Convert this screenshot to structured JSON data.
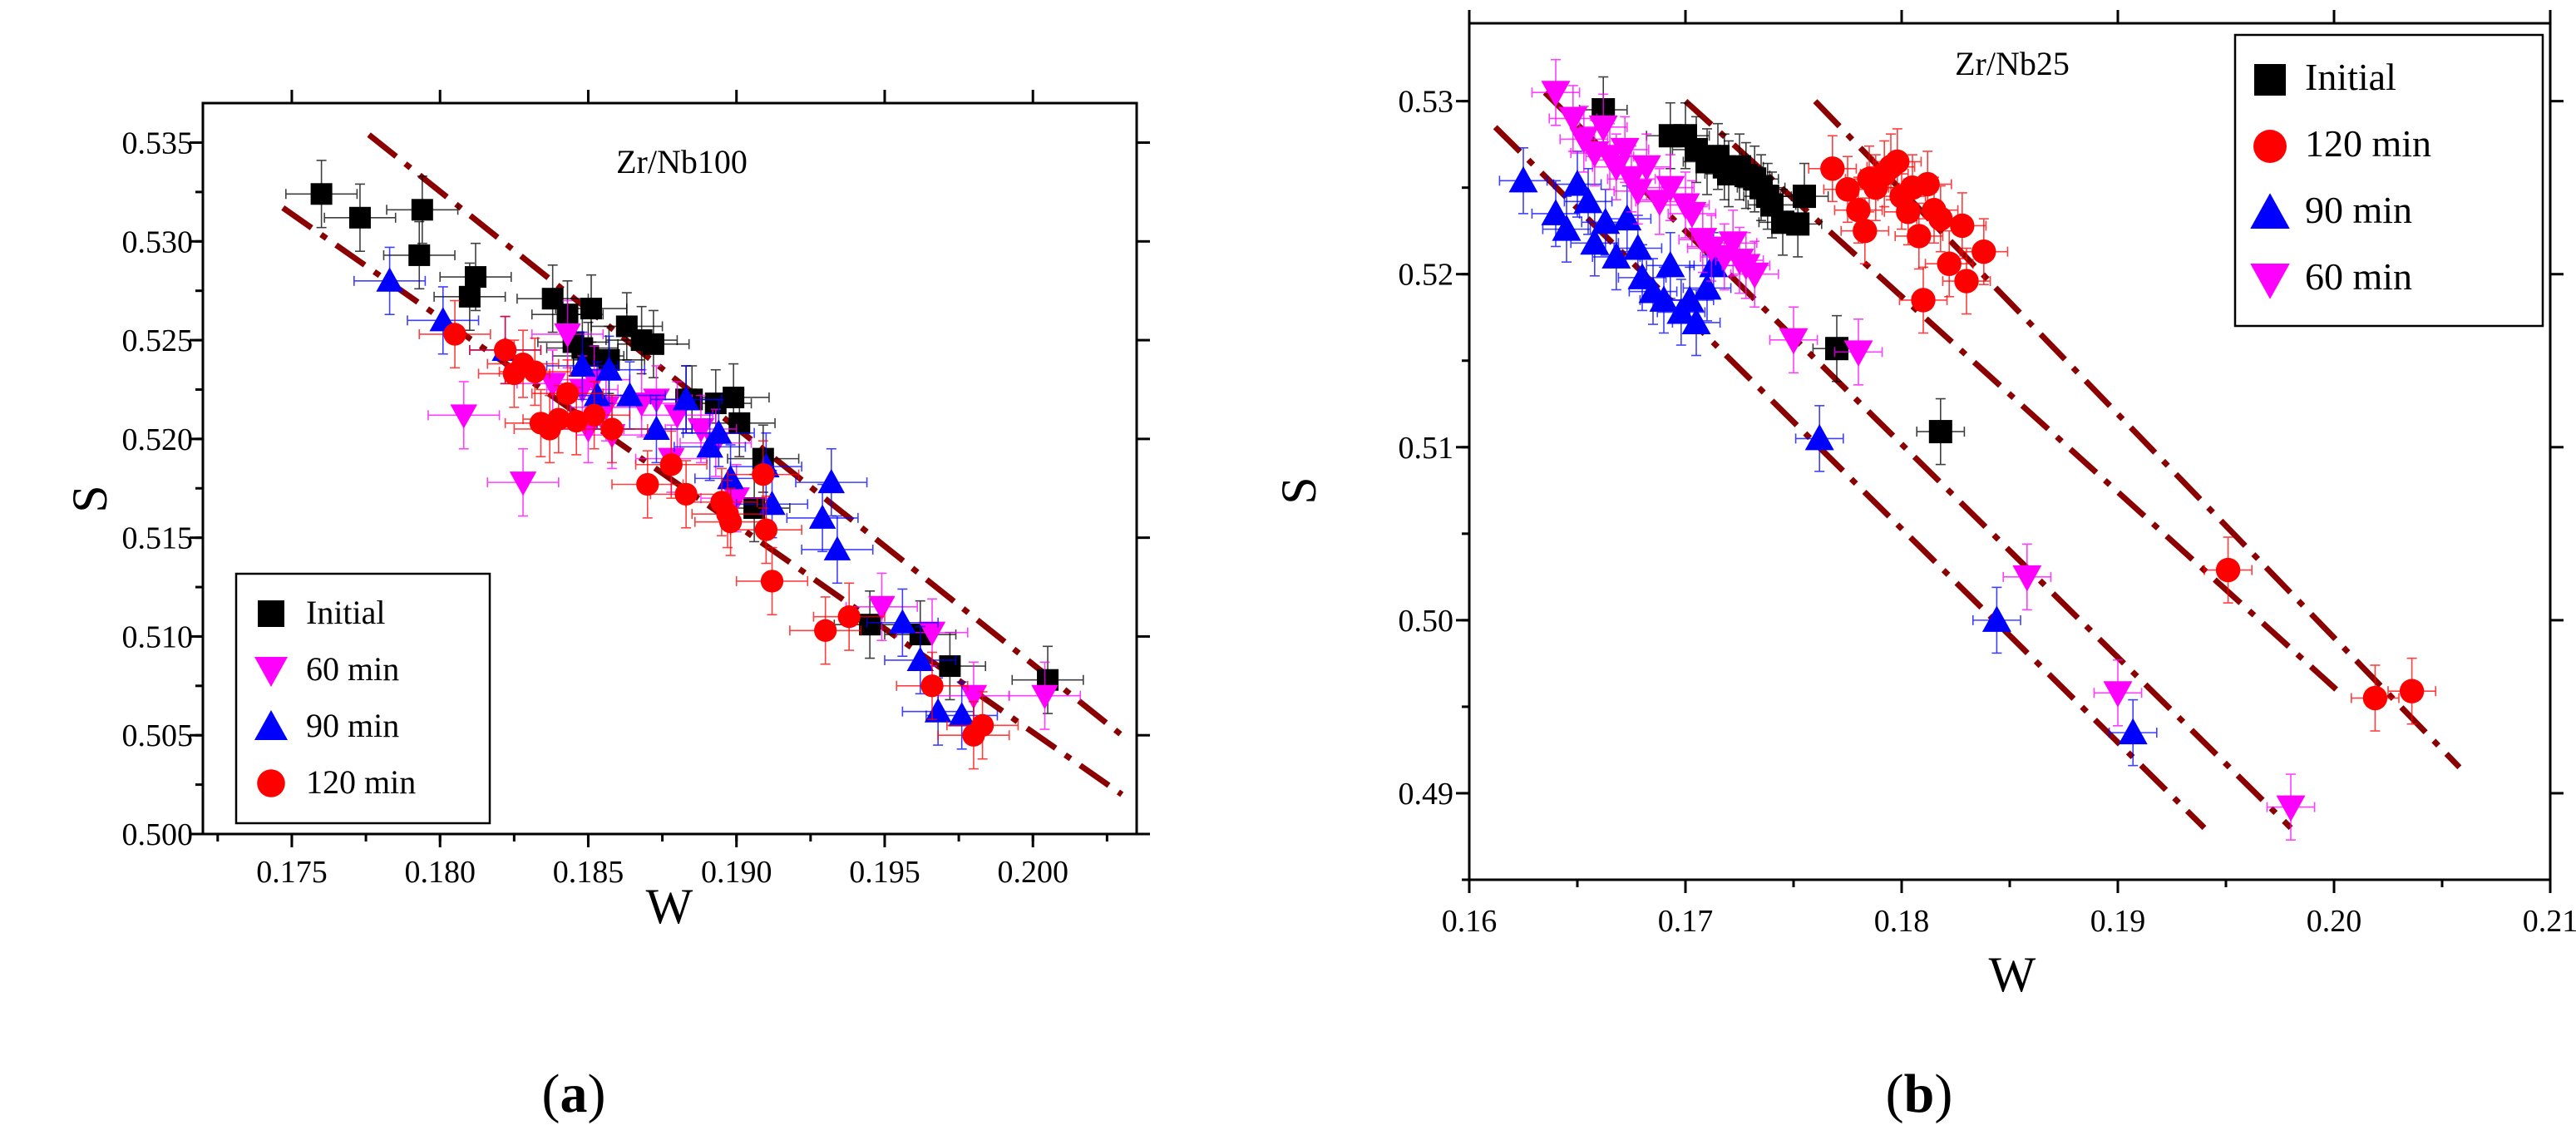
{
  "chart_data": [
    {
      "type": "scatter",
      "title": "Zr/Nb100",
      "caption": "a",
      "xlabel": "W",
      "ylabel": "S",
      "xlim": [
        0.172,
        0.2035
      ],
      "ylim": [
        0.5,
        0.537
      ],
      "x_ticks": [
        "0.175",
        "0.180",
        "0.185",
        "0.190",
        "0.195",
        "0.200"
      ],
      "y_ticks": [
        "0.500",
        "0.505",
        "0.510",
        "0.515",
        "0.520",
        "0.525",
        "0.530",
        "0.535"
      ],
      "legend_position": "bottom-left",
      "series": [
        {
          "name": "Initial",
          "marker": "square",
          "color": "#000000",
          "points": [
            [
              0.176,
              0.5324
            ],
            [
              0.1773,
              0.5312
            ],
            [
              0.1793,
              0.5293
            ],
            [
              0.1794,
              0.5316
            ],
            [
              0.181,
              0.5272
            ],
            [
              0.1812,
              0.5282
            ],
            [
              0.1838,
              0.5271
            ],
            [
              0.1843,
              0.5263
            ],
            [
              0.1845,
              0.5249
            ],
            [
              0.1848,
              0.5246
            ],
            [
              0.185,
              0.5242
            ],
            [
              0.1851,
              0.5266
            ],
            [
              0.1857,
              0.524
            ],
            [
              0.1863,
              0.5257
            ],
            [
              0.1868,
              0.525
            ],
            [
              0.1872,
              0.5248
            ],
            [
              0.1883,
              0.522
            ],
            [
              0.1885,
              0.522
            ],
            [
              0.1893,
              0.5218
            ],
            [
              0.1899,
              0.5221
            ],
            [
              0.1901,
              0.5208
            ],
            [
              0.1906,
              0.5165
            ],
            [
              0.1909,
              0.519
            ],
            [
              0.1945,
              0.5106
            ],
            [
              0.1962,
              0.5101
            ],
            [
              0.1972,
              0.5085
            ],
            [
              0.2005,
              0.5078
            ]
          ]
        },
        {
          "name": "60 min",
          "marker": "triangle-down",
          "color": "#ff00ff",
          "points": [
            [
              0.1808,
              0.5212
            ],
            [
              0.1828,
              0.5178
            ],
            [
              0.1838,
              0.5228
            ],
            [
              0.1843,
              0.5253
            ],
            [
              0.1848,
              0.5225
            ],
            [
              0.185,
              0.5205
            ],
            [
              0.1852,
              0.523
            ],
            [
              0.1856,
              0.5216
            ],
            [
              0.1858,
              0.5202
            ],
            [
              0.1868,
              0.5218
            ],
            [
              0.1873,
              0.522
            ],
            [
              0.1878,
              0.519
            ],
            [
              0.188,
              0.5212
            ],
            [
              0.1888,
              0.5205
            ],
            [
              0.1893,
              0.5198
            ],
            [
              0.19,
              0.517
            ],
            [
              0.1949,
              0.5115
            ],
            [
              0.1966,
              0.5102
            ],
            [
              0.198,
              0.507
            ],
            [
              0.2004,
              0.507
            ]
          ]
        },
        {
          "name": "90 min",
          "marker": "triangle-up",
          "color": "#0000ff",
          "points": [
            [
              0.1783,
              0.528
            ],
            [
              0.1801,
              0.526
            ],
            [
              0.1822,
              0.5245
            ],
            [
              0.1848,
              0.5237
            ],
            [
              0.1853,
              0.5222
            ],
            [
              0.1857,
              0.5235
            ],
            [
              0.1864,
              0.5222
            ],
            [
              0.1873,
              0.5205
            ],
            [
              0.1883,
              0.522
            ],
            [
              0.1891,
              0.5196
            ],
            [
              0.1894,
              0.5203
            ],
            [
              0.1898,
              0.518
            ],
            [
              0.191,
              0.5186
            ],
            [
              0.1912,
              0.5167
            ],
            [
              0.1929,
              0.516
            ],
            [
              0.1932,
              0.5178
            ],
            [
              0.1934,
              0.5144
            ],
            [
              0.1956,
              0.5107
            ],
            [
              0.1962,
              0.5088
            ],
            [
              0.1968,
              0.5062
            ],
            [
              0.1976,
              0.506
            ]
          ]
        },
        {
          "name": "120 min",
          "marker": "circle",
          "color": "#ff0000",
          "points": [
            [
              0.1805,
              0.5253
            ],
            [
              0.1822,
              0.5245
            ],
            [
              0.1825,
              0.5233
            ],
            [
              0.1828,
              0.5238
            ],
            [
              0.1832,
              0.5234
            ],
            [
              0.1834,
              0.5208
            ],
            [
              0.1837,
              0.5205
            ],
            [
              0.184,
              0.521
            ],
            [
              0.1843,
              0.5223
            ],
            [
              0.1846,
              0.5209
            ],
            [
              0.1852,
              0.5212
            ],
            [
              0.1858,
              0.5205
            ],
            [
              0.187,
              0.5177
            ],
            [
              0.1878,
              0.5187
            ],
            [
              0.1883,
              0.5172
            ],
            [
              0.1895,
              0.5168
            ],
            [
              0.1897,
              0.5162
            ],
            [
              0.1898,
              0.5158
            ],
            [
              0.1909,
              0.5182
            ],
            [
              0.191,
              0.5154
            ],
            [
              0.1912,
              0.5128
            ],
            [
              0.193,
              0.5103
            ],
            [
              0.1938,
              0.511
            ],
            [
              0.1966,
              0.5075
            ],
            [
              0.198,
              0.505
            ],
            [
              0.1983,
              0.5055
            ]
          ]
        }
      ],
      "fit_lines": [
        [
          [
            0.1776,
            0.5354
          ],
          [
            0.203,
            0.505
          ]
        ],
        [
          [
            0.1747,
            0.5317
          ],
          [
            0.203,
            0.502
          ]
        ]
      ]
    },
    {
      "type": "scatter",
      "title": "Zr/Nb25",
      "caption": "b",
      "xlabel": "W",
      "ylabel": "S",
      "xlim": [
        0.16,
        0.21
      ],
      "ylim": [
        0.485,
        0.5345
      ],
      "x_ticks": [
        "0.16",
        "0.17",
        "0.18",
        "0.19",
        "0.20",
        "0.21"
      ],
      "y_ticks": [
        "0.49",
        "0.50",
        "0.51",
        "0.52",
        "0.53"
      ],
      "legend_position": "top-right",
      "series": [
        {
          "name": "Initial",
          "marker": "square",
          "color": "#000000",
          "points": [
            [
              0.1662,
              0.5295
            ],
            [
              0.1693,
              0.528
            ],
            [
              0.17,
              0.528
            ],
            [
              0.1705,
              0.5272
            ],
            [
              0.171,
              0.5265
            ],
            [
              0.1715,
              0.5268
            ],
            [
              0.1718,
              0.5262
            ],
            [
              0.172,
              0.5258
            ],
            [
              0.1725,
              0.5262
            ],
            [
              0.1728,
              0.5257
            ],
            [
              0.1732,
              0.5255
            ],
            [
              0.1735,
              0.525
            ],
            [
              0.1738,
              0.5245
            ],
            [
              0.174,
              0.524
            ],
            [
              0.1745,
              0.523
            ],
            [
              0.1752,
              0.5229
            ],
            [
              0.1755,
              0.5245
            ],
            [
              0.177,
              0.5157
            ],
            [
              0.1818,
              0.5109
            ]
          ]
        },
        {
          "name": "120 min",
          "marker": "circle",
          "color": "#ff0000",
          "points": [
            [
              0.1768,
              0.5261
            ],
            [
              0.1775,
              0.5249
            ],
            [
              0.178,
              0.5237
            ],
            [
              0.1783,
              0.5225
            ],
            [
              0.1785,
              0.5255
            ],
            [
              0.1788,
              0.525
            ],
            [
              0.1792,
              0.5258
            ],
            [
              0.1795,
              0.5262
            ],
            [
              0.1798,
              0.5265
            ],
            [
              0.18,
              0.5245
            ],
            [
              0.1803,
              0.5236
            ],
            [
              0.1805,
              0.525
            ],
            [
              0.1808,
              0.5222
            ],
            [
              0.181,
              0.5185
            ],
            [
              0.1812,
              0.5252
            ],
            [
              0.1815,
              0.5237
            ],
            [
              0.1818,
              0.5232
            ],
            [
              0.1822,
              0.5206
            ],
            [
              0.1828,
              0.5228
            ],
            [
              0.183,
              0.5196
            ],
            [
              0.1838,
              0.5213
            ],
            [
              0.1951,
              0.5029
            ],
            [
              0.2019,
              0.4955
            ],
            [
              0.2036,
              0.4959
            ]
          ]
        },
        {
          "name": "90 min",
          "marker": "triangle-up",
          "color": "#0000ff",
          "points": [
            [
              0.1625,
              0.5254
            ],
            [
              0.164,
              0.5235
            ],
            [
              0.1645,
              0.5226
            ],
            [
              0.165,
              0.5252
            ],
            [
              0.1655,
              0.5242
            ],
            [
              0.1658,
              0.5218
            ],
            [
              0.1663,
              0.523
            ],
            [
              0.1668,
              0.521
            ],
            [
              0.1673,
              0.5232
            ],
            [
              0.1678,
              0.5215
            ],
            [
              0.168,
              0.5198
            ],
            [
              0.1685,
              0.519
            ],
            [
              0.169,
              0.5185
            ],
            [
              0.1693,
              0.5205
            ],
            [
              0.1698,
              0.5178
            ],
            [
              0.1702,
              0.5185
            ],
            [
              0.1705,
              0.5172
            ],
            [
              0.171,
              0.5192
            ],
            [
              0.1713,
              0.5205
            ],
            [
              0.1762,
              0.5105
            ],
            [
              0.1844,
              0.5
            ],
            [
              0.1907,
              0.4935
            ]
          ]
        },
        {
          "name": "60 min",
          "marker": "triangle-down",
          "color": "#ff00ff",
          "points": [
            [
              0.164,
              0.5305
            ],
            [
              0.1648,
              0.529
            ],
            [
              0.1653,
              0.5278
            ],
            [
              0.1658,
              0.527
            ],
            [
              0.1662,
              0.5285
            ],
            [
              0.1665,
              0.5268
            ],
            [
              0.1668,
              0.5262
            ],
            [
              0.1672,
              0.5272
            ],
            [
              0.1675,
              0.5255
            ],
            [
              0.1678,
              0.5248
            ],
            [
              0.1682,
              0.5262
            ],
            [
              0.1688,
              0.5242
            ],
            [
              0.1693,
              0.525
            ],
            [
              0.17,
              0.524
            ],
            [
              0.1703,
              0.5235
            ],
            [
              0.1708,
              0.522
            ],
            [
              0.1712,
              0.5215
            ],
            [
              0.1718,
              0.521
            ],
            [
              0.1722,
              0.5218
            ],
            [
              0.1725,
              0.5208
            ],
            [
              0.1728,
              0.5205
            ],
            [
              0.1732,
              0.52
            ],
            [
              0.175,
              0.5162
            ],
            [
              0.178,
              0.5155
            ],
            [
              0.1858,
              0.5025
            ],
            [
              0.19,
              0.4958
            ],
            [
              0.198,
              0.4892
            ]
          ]
        }
      ],
      "fit_lines": [
        [
          [
            0.1612,
            0.5285
          ],
          [
            0.194,
            0.488
          ]
        ],
        [
          [
            0.1635,
            0.5305
          ],
          [
            0.198,
            0.488
          ]
        ],
        [
          [
            0.17,
            0.53
          ],
          [
            0.2001,
            0.496
          ]
        ],
        [
          [
            0.176,
            0.53
          ],
          [
            0.2058,
            0.4915
          ]
        ]
      ]
    }
  ]
}
